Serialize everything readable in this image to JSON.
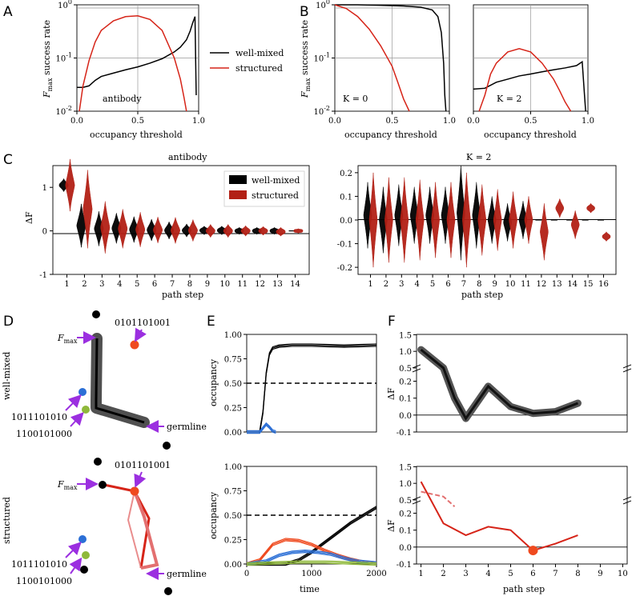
{
  "panel_letters": [
    "A",
    "B",
    "C",
    "D",
    "E",
    "F"
  ],
  "colors": {
    "well_mixed": "#000000",
    "structured": "#d62418",
    "red_dark": "#b22015",
    "arrow": "#9b2fe0",
    "blue": "#2b6fd6",
    "green": "#8fb93a",
    "orange": "#ef4a1f"
  },
  "chart_data": [
    {
      "id": "A",
      "type": "line",
      "title": "",
      "xlabel": "occupancy threshold",
      "ylabel": "F_max success rate",
      "yscale": "log",
      "xlim": [
        0,
        1
      ],
      "ylim": [
        0.01,
        1
      ],
      "xticks": [
        "0.0",
        "0.5",
        "1.0"
      ],
      "yticks": [
        "10^-2",
        "10^-1",
        "10^0"
      ],
      "annotation": "antibody",
      "legend": [
        "well-mixed",
        "structured"
      ],
      "series": [
        {
          "name": "well-mixed",
          "x": [
            0,
            0.05,
            0.1,
            0.15,
            0.2,
            0.3,
            0.4,
            0.5,
            0.6,
            0.7,
            0.8,
            0.85,
            0.9,
            0.93,
            0.95,
            0.97,
            0.98
          ],
          "y": [
            0.028,
            0.028,
            0.03,
            0.038,
            0.045,
            0.052,
            0.06,
            0.068,
            0.08,
            0.097,
            0.13,
            0.16,
            0.22,
            0.32,
            0.45,
            0.6,
            0.02
          ]
        },
        {
          "name": "structured",
          "x": [
            0.02,
            0.05,
            0.1,
            0.15,
            0.2,
            0.3,
            0.4,
            0.5,
            0.6,
            0.7,
            0.8,
            0.85,
            0.88,
            0.9
          ],
          "y": [
            0.01,
            0.03,
            0.09,
            0.2,
            0.33,
            0.5,
            0.6,
            0.62,
            0.53,
            0.33,
            0.1,
            0.04,
            0.018,
            0.01
          ]
        }
      ]
    },
    {
      "id": "B1",
      "type": "line",
      "xlabel": "occupancy threshold",
      "ylabel": "F_max success rate",
      "yscale": "log",
      "xlim": [
        0,
        1
      ],
      "ylim": [
        0.01,
        1
      ],
      "xticks": [
        "0.0",
        "0.5",
        "1.0"
      ],
      "yticks": [
        "10^-2",
        "10^-1",
        "10^0"
      ],
      "annotation": "K = 0",
      "series": [
        {
          "name": "well-mixed",
          "x": [
            0,
            0.2,
            0.4,
            0.6,
            0.75,
            0.85,
            0.9,
            0.93,
            0.95,
            0.96,
            0.97
          ],
          "y": [
            1.0,
            1.0,
            0.98,
            0.95,
            0.9,
            0.8,
            0.6,
            0.3,
            0.08,
            0.02,
            0.01
          ]
        },
        {
          "name": "structured",
          "x": [
            0,
            0.1,
            0.2,
            0.3,
            0.4,
            0.5,
            0.55,
            0.6,
            0.65
          ],
          "y": [
            1.0,
            0.85,
            0.6,
            0.35,
            0.17,
            0.07,
            0.035,
            0.017,
            0.01
          ]
        }
      ]
    },
    {
      "id": "B2",
      "type": "line",
      "xlabel": "occupancy threshold",
      "xlim": [
        0,
        1
      ],
      "ylim": [
        0.01,
        1
      ],
      "yscale": "log",
      "xticks": [
        "0.0",
        "0.5",
        "1.0"
      ],
      "annotation": "K = 2",
      "series": [
        {
          "name": "well-mixed",
          "x": [
            0,
            0.1,
            0.2,
            0.3,
            0.4,
            0.5,
            0.6,
            0.7,
            0.8,
            0.9,
            0.95,
            0.97,
            0.98
          ],
          "y": [
            0.026,
            0.027,
            0.035,
            0.04,
            0.046,
            0.05,
            0.055,
            0.06,
            0.065,
            0.072,
            0.085,
            0.02,
            0.01
          ]
        },
        {
          "name": "structured",
          "x": [
            0.05,
            0.1,
            0.15,
            0.2,
            0.3,
            0.4,
            0.5,
            0.6,
            0.7,
            0.75,
            0.8,
            0.85
          ],
          "y": [
            0.01,
            0.02,
            0.05,
            0.08,
            0.13,
            0.15,
            0.13,
            0.08,
            0.04,
            0.025,
            0.015,
            0.01
          ]
        }
      ]
    },
    {
      "id": "C1",
      "type": "violin",
      "title": "antibody",
      "xlabel": "path step",
      "ylabel": "ΔF",
      "ylim": [
        -1,
        1.5
      ],
      "yticks": [
        "-1",
        "0",
        "1"
      ],
      "categories": [
        "1",
        "2",
        "3",
        "4",
        "5",
        "6",
        "7",
        "8",
        "9",
        "10",
        "11",
        "12",
        "13",
        "14"
      ],
      "legend": [
        "well-mixed",
        "structured"
      ],
      "series": [
        {
          "name": "well-mixed",
          "median": [
            1.05,
            0.12,
            0.05,
            0.06,
            0.03,
            0.02,
            0.01,
            0.01,
            0.01,
            0.01,
            0.0,
            0.0,
            0.0,
            0.0
          ],
          "spread": [
            0.15,
            0.5,
            0.4,
            0.35,
            0.3,
            0.25,
            0.2,
            0.15,
            0.1,
            0.1,
            0.08,
            0.08,
            0.08,
            0.0
          ]
        },
        {
          "name": "structured",
          "median": [
            1.05,
            0.5,
            0.08,
            0.05,
            0.03,
            0.02,
            0.01,
            0.01,
            0.0,
            0.0,
            0.0,
            0.0,
            -0.02,
            0.0
          ],
          "spread": [
            0.6,
            0.9,
            0.6,
            0.45,
            0.4,
            0.3,
            0.3,
            0.25,
            0.15,
            0.15,
            0.12,
            0.1,
            0.1,
            0.05
          ]
        }
      ]
    },
    {
      "id": "C2",
      "type": "violin",
      "title": "K = 2",
      "xlabel": "path step",
      "ylim": [
        -0.23,
        0.23
      ],
      "yticks": [
        "-0.2",
        "-0.1",
        "0.0",
        "0.1",
        "0.2"
      ],
      "categories": [
        "1",
        "2",
        "3",
        "4",
        "5",
        "6",
        "7",
        "8",
        "9",
        "10",
        "11",
        "12",
        "13",
        "14",
        "15",
        "16"
      ],
      "series": [
        {
          "name": "well-mixed",
          "median": [
            0.02,
            0.0,
            0.02,
            0.02,
            0.02,
            0.02,
            0.03,
            0.02,
            0.0,
            -0.01,
            0.0,
            0.0,
            0.0,
            0.0,
            0.0,
            0.0
          ],
          "spread": [
            0.14,
            0.14,
            0.13,
            0.12,
            0.12,
            0.12,
            0.2,
            0.14,
            0.1,
            0.08,
            0.08,
            0.0,
            0.0,
            0.0,
            0.0,
            0.0
          ]
        },
        {
          "name": "structured",
          "median": [
            0.0,
            0.0,
            0.0,
            0.0,
            0.0,
            0.0,
            0.0,
            0.0,
            0.0,
            0.0,
            0.0,
            -0.05,
            0.05,
            -0.02,
            0.05,
            -0.07
          ],
          "spread": [
            0.2,
            0.18,
            0.18,
            0.17,
            0.16,
            0.16,
            0.2,
            0.15,
            0.13,
            0.12,
            0.1,
            0.12,
            0.04,
            0.06,
            0.02,
            0.02
          ]
        }
      ]
    },
    {
      "id": "E1",
      "type": "line",
      "ylabel": "occupancy",
      "xlim": [
        0,
        2000
      ],
      "ylim": [
        0,
        1
      ],
      "yticks": [
        "0.00",
        "0.25",
        "0.50",
        "0.75",
        "1.00"
      ],
      "threshold": 0.5,
      "series": [
        {
          "name": "F_max",
          "color": "black",
          "x": [
            0,
            200,
            250,
            300,
            350,
            400,
            500,
            700,
            1000,
            1500,
            2000
          ],
          "y": [
            0,
            0,
            0.2,
            0.6,
            0.8,
            0.86,
            0.88,
            0.89,
            0.89,
            0.88,
            0.89
          ]
        },
        {
          "name": "blue",
          "color": "blue",
          "x": [
            0,
            200,
            300,
            350,
            400,
            450
          ],
          "y": [
            0,
            0,
            0.08,
            0.05,
            0.01,
            0
          ]
        }
      ]
    },
    {
      "id": "E2",
      "type": "line",
      "ylabel": "occupancy",
      "xlabel": "time",
      "xlim": [
        0,
        2000
      ],
      "ylim": [
        0,
        1
      ],
      "xticks": [
        "0",
        "1000",
        "2000"
      ],
      "yticks": [
        "0.00",
        "0.25",
        "0.50",
        "0.75",
        "1.00"
      ],
      "threshold": 0.5,
      "series": [
        {
          "name": "F_max",
          "color": "black",
          "x": [
            0,
            600,
            800,
            1000,
            1200,
            1400,
            1600,
            1800,
            2000
          ],
          "y": [
            0,
            0,
            0.04,
            0.12,
            0.22,
            0.32,
            0.42,
            0.5,
            0.58
          ]
        },
        {
          "name": "orange",
          "color": "orange",
          "x": [
            0,
            200,
            400,
            600,
            800,
            1000,
            1200,
            1400,
            1600,
            1800,
            2000
          ],
          "y": [
            0,
            0.04,
            0.2,
            0.25,
            0.24,
            0.2,
            0.14,
            0.09,
            0.05,
            0.02,
            0.01
          ]
        },
        {
          "name": "blue",
          "color": "blue",
          "x": [
            0,
            300,
            500,
            700,
            900,
            1100,
            1300,
            1500,
            1700,
            2000
          ],
          "y": [
            0,
            0.03,
            0.09,
            0.12,
            0.13,
            0.12,
            0.1,
            0.06,
            0.03,
            0.01
          ]
        },
        {
          "name": "green",
          "color": "green",
          "x": [
            0,
            400,
            800,
            1200,
            1600,
            2000
          ],
          "y": [
            0,
            0.01,
            0.02,
            0.02,
            0.01,
            0
          ]
        }
      ]
    },
    {
      "id": "F1",
      "type": "line",
      "ylabel": "ΔF",
      "xlim": [
        0.8,
        10.2
      ],
      "yticks": [
        "-0.1",
        "0.0",
        "0.1",
        "0.2",
        "0.5",
        "1.0",
        "1.5"
      ],
      "series": [
        {
          "name": "well-mixed path",
          "x": [
            1,
            2,
            2.5,
            3,
            4,
            5,
            6,
            7,
            8
          ],
          "y": [
            1.05,
            0.5,
            0.1,
            -0.02,
            0.17,
            0.05,
            0.01,
            0.02,
            0.07
          ]
        }
      ]
    },
    {
      "id": "F2",
      "type": "line",
      "ylabel": "ΔF",
      "xlabel": "path step",
      "xlim": [
        0.8,
        10.2
      ],
      "xticks": [
        "1",
        "2",
        "3",
        "4",
        "5",
        "6",
        "7",
        "8",
        "9",
        "10"
      ],
      "yticks": [
        "-0.1",
        "0.0",
        "0.1",
        "0.2",
        "0.5",
        "1.0",
        "1.5"
      ],
      "series": [
        {
          "name": "structured path",
          "x": [
            1,
            2,
            3,
            4,
            5,
            6,
            7,
            8
          ],
          "y": [
            1.05,
            0.14,
            0.07,
            0.12,
            0.1,
            -0.02,
            0.02,
            0.07
          ]
        },
        {
          "name": "structured alt",
          "x": [
            1,
            2,
            2.5
          ],
          "y": [
            0.75,
            0.6,
            0.3
          ]
        }
      ],
      "marker": {
        "x": 6,
        "y": -0.02
      }
    }
  ],
  "legend_labels": {
    "well_mixed": "well-mixed",
    "structured": "structured"
  },
  "titles": {
    "c_left": "antibody",
    "c_right": "K = 2",
    "annot_a": "antibody",
    "annot_b1": "K = 0",
    "annot_b2": "K = 2"
  },
  "axis_labels": {
    "occupancy_threshold": "occupancy threshold",
    "success_rate": "F_max success rate",
    "path_step": "path step",
    "delta_f": "ΔF",
    "occupancy": "occupancy",
    "time": "time"
  },
  "panel_d": {
    "row_labels": [
      "well-mixed",
      "structured"
    ],
    "fmax_label": "F_max",
    "germline_label": "germline",
    "seq_top": "0101101001",
    "seq_mid": "1011101010",
    "seq_bot": "1100101000"
  }
}
